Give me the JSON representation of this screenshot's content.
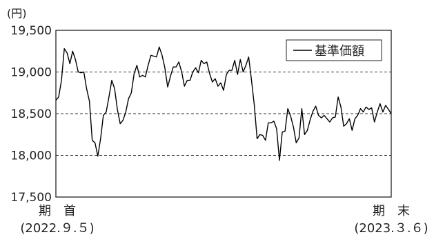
{
  "chart_data": {
    "type": "line",
    "unit_label": "(円)",
    "yticks": [
      "19,500",
      "19,000",
      "18,500",
      "18,000",
      "17,500"
    ],
    "ylim": [
      17500,
      19500
    ],
    "grid": "dashed horizontal at 18,000 / 18,500 / 19,000",
    "legend": "top-right",
    "start_label": "期　首",
    "start_date": "(2022.９.５)",
    "end_label": "期　末",
    "end_date": "(2023.３.６)",
    "series": [
      {
        "name": "基準価額",
        "color": "#000000",
        "values": [
          18660,
          18700,
          18900,
          19280,
          19230,
          19100,
          19250,
          19150,
          19000,
          18990,
          19000,
          18800,
          18650,
          18180,
          18150,
          17990,
          18200,
          18480,
          18520,
          18700,
          18900,
          18800,
          18550,
          18380,
          18420,
          18520,
          18680,
          18750,
          18980,
          19080,
          18940,
          18960,
          18940,
          19080,
          19200,
          19190,
          19180,
          19300,
          19200,
          19050,
          18820,
          18950,
          19060,
          19060,
          19120,
          19000,
          18830,
          18900,
          18900,
          19000,
          19050,
          18990,
          19140,
          19100,
          19120,
          18980,
          18880,
          18920,
          18830,
          18870,
          18780,
          18970,
          19020,
          19020,
          19140,
          18970,
          19150,
          19000,
          19080,
          19180,
          18900,
          18600,
          18200,
          18250,
          18240,
          18180,
          18390,
          18390,
          18410,
          18320,
          17940,
          18280,
          18290,
          18560,
          18470,
          18340,
          18150,
          18210,
          18560,
          18250,
          18300,
          18430,
          18530,
          18590,
          18480,
          18450,
          18480,
          18440,
          18400,
          18450,
          18460,
          18700,
          18580,
          18350,
          18380,
          18440,
          18300,
          18440,
          18480,
          18560,
          18520,
          18580,
          18550,
          18570,
          18400,
          18520,
          18620,
          18520,
          18600,
          18550,
          18500
        ]
      }
    ]
  }
}
